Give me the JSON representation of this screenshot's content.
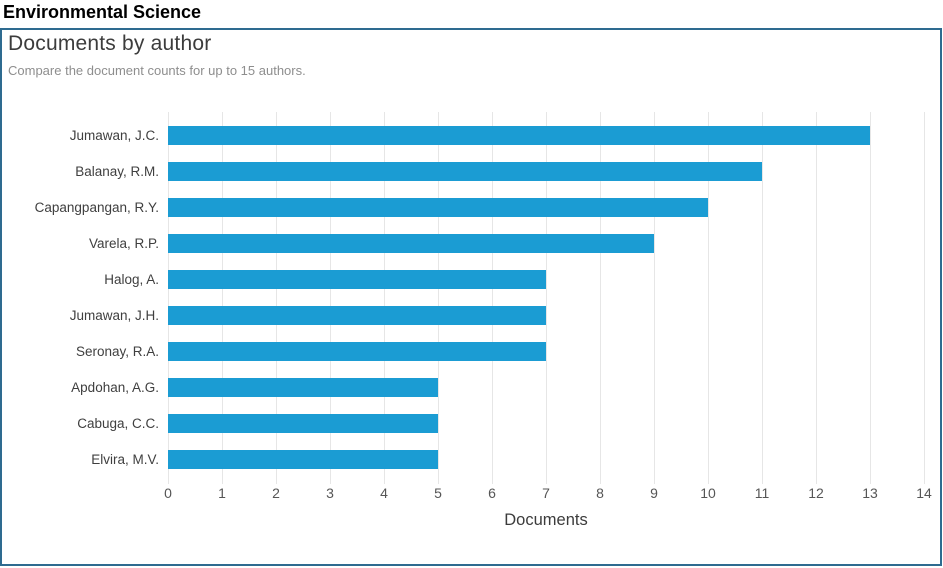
{
  "header": {
    "title": "Environmental Science"
  },
  "panel": {
    "title": "Documents by author",
    "subtitle": "Compare the document counts for up to 15 authors."
  },
  "chart_data": {
    "type": "bar",
    "orientation": "horizontal",
    "title": "Documents by author",
    "subtitle": "Compare the document counts for up to 15 authors.",
    "categories": [
      "Jumawan, J.C.",
      "Balanay, R.M.",
      "Capangpangan, R.Y.",
      "Varela, R.P.",
      "Halog, A.",
      "Jumawan, J.H.",
      "Seronay, R.A.",
      "Apdohan, A.G.",
      "Cabuga, C.C.",
      "Elvira, M.V."
    ],
    "values": [
      13,
      11,
      10,
      9,
      7,
      7,
      7,
      5,
      5,
      5
    ],
    "xlabel": "Documents",
    "ylabel": "",
    "xlim": [
      0,
      14
    ],
    "xticks": [
      0,
      1,
      2,
      3,
      4,
      5,
      6,
      7,
      8,
      9,
      10,
      11,
      12,
      13,
      14
    ],
    "grid": true,
    "legend": "none"
  },
  "colors": {
    "bar": "#1b9cd3",
    "panel_border": "#2e6b90",
    "grid_line": "#e6e6e6",
    "title_text": "#3c3c3c",
    "subtitle_text": "#8e8e8e",
    "axis_text": "#565656",
    "header_text": "#000000"
  }
}
